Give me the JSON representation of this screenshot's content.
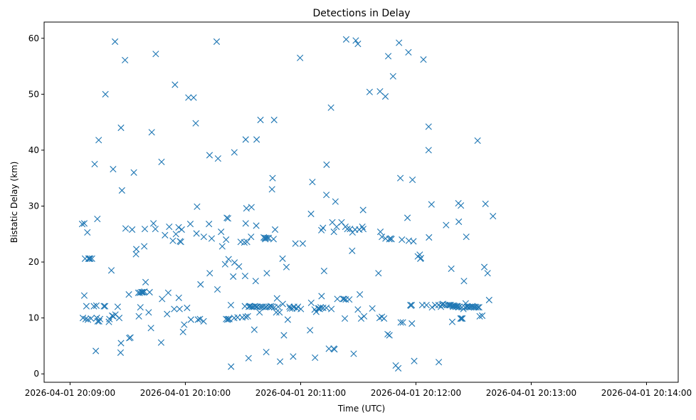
{
  "chart_data": {
    "type": "scatter",
    "title": "Detections in Delay",
    "xlabel": "Time (UTC)",
    "ylabel": "Bistatic Delay (km)",
    "marker": "x",
    "color": "#1f77b4",
    "x_unit": "seconds after 2026-04-01 20:09:00 UTC",
    "xlim": [
      -13.5,
      316.5
    ],
    "ylim": [
      -1.5,
      62.9
    ],
    "xticks": [
      {
        "value": 0,
        "label": "2026-04-01 20:09:00"
      },
      {
        "value": 60,
        "label": "2026-04-01 20:10:00"
      },
      {
        "value": 120,
        "label": "2026-04-01 20:11:00"
      },
      {
        "value": 180,
        "label": "2026-04-01 20:12:00"
      },
      {
        "value": 240,
        "label": "2026-04-01 20:13:00"
      },
      {
        "value": 300,
        "label": "2026-04-01 20:14:00"
      }
    ],
    "yticks": [
      {
        "value": 0,
        "label": "0"
      },
      {
        "value": 10,
        "label": "10"
      },
      {
        "value": 20,
        "label": "20"
      },
      {
        "value": 30,
        "label": "30"
      },
      {
        "value": 40,
        "label": "40"
      },
      {
        "value": 50,
        "label": "50"
      },
      {
        "value": 60,
        "label": "60"
      }
    ],
    "points": [
      [
        6.3,
        26.8
      ],
      [
        7.4,
        26.9
      ],
      [
        7.4,
        14.0
      ],
      [
        6.7,
        10.0
      ],
      [
        7.8,
        20.6
      ],
      [
        8.1,
        9.8
      ],
      [
        8.5,
        12.1
      ],
      [
        9.0,
        25.3
      ],
      [
        9.3,
        9.7
      ],
      [
        9.6,
        20.6
      ],
      [
        10.0,
        20.6
      ],
      [
        10.5,
        20.6
      ],
      [
        10.9,
        9.9
      ],
      [
        11.4,
        20.6
      ],
      [
        12.4,
        12.1
      ],
      [
        12.8,
        37.5
      ],
      [
        13.4,
        4.1
      ],
      [
        13.7,
        12.2
      ],
      [
        13.9,
        10.0
      ],
      [
        14.2,
        27.7
      ],
      [
        14.4,
        9.4
      ],
      [
        14.9,
        41.8
      ],
      [
        15.1,
        9.4
      ],
      [
        15.6,
        9.8
      ],
      [
        17.6,
        12.1
      ],
      [
        18.2,
        12.1
      ],
      [
        18.4,
        50.0
      ],
      [
        20.2,
        9.3
      ],
      [
        20.5,
        9.8
      ],
      [
        21.5,
        18.5
      ],
      [
        21.9,
        10.4
      ],
      [
        22.4,
        36.6
      ],
      [
        22.5,
        10.3
      ],
      [
        23.4,
        59.4
      ],
      [
        23.6,
        10.6
      ],
      [
        24.8,
        12.0
      ],
      [
        25.6,
        10.0
      ],
      [
        26.5,
        5.5
      ],
      [
        26.3,
        3.8
      ],
      [
        26.5,
        44.0
      ],
      [
        27.0,
        32.8
      ],
      [
        28.6,
        56.1
      ],
      [
        28.9,
        26.0
      ],
      [
        30.6,
        14.2
      ],
      [
        30.8,
        6.4
      ],
      [
        31.4,
        6.5
      ],
      [
        32.3,
        25.8
      ],
      [
        33.2,
        36.0
      ],
      [
        34.5,
        22.3
      ],
      [
        34.3,
        21.4
      ],
      [
        35.5,
        14.5
      ],
      [
        35.8,
        10.3
      ],
      [
        36.6,
        11.9
      ],
      [
        36.3,
        14.5
      ],
      [
        37.1,
        14.6
      ],
      [
        37.6,
        14.6
      ],
      [
        38.2,
        14.6
      ],
      [
        38.6,
        22.8
      ],
      [
        38.9,
        25.9
      ],
      [
        38.7,
        14.7
      ],
      [
        39.3,
        16.4
      ],
      [
        40.9,
        11.0
      ],
      [
        41.4,
        14.6
      ],
      [
        42.1,
        8.2
      ],
      [
        42.5,
        43.2
      ],
      [
        43.4,
        26.9
      ],
      [
        44.6,
        57.2
      ],
      [
        44.4,
        25.9
      ],
      [
        47.6,
        37.9
      ],
      [
        47.4,
        5.6
      ],
      [
        47.9,
        13.4
      ],
      [
        49.4,
        24.8
      ],
      [
        50.5,
        10.7
      ],
      [
        51.1,
        14.5
      ],
      [
        51.6,
        26.3
      ],
      [
        53.5,
        23.8
      ],
      [
        54.6,
        51.7
      ],
      [
        54.2,
        11.6
      ],
      [
        55.1,
        25.0
      ],
      [
        56.6,
        13.6
      ],
      [
        56.5,
        26.2
      ],
      [
        57.0,
        11.6
      ],
      [
        57.2,
        23.7
      ],
      [
        57.7,
        23.6
      ],
      [
        58.1,
        25.8
      ],
      [
        58.8,
        7.5
      ],
      [
        59.4,
        8.8
      ],
      [
        60.9,
        11.8
      ],
      [
        61.6,
        49.4
      ],
      [
        62.6,
        26.8
      ],
      [
        62.9,
        9.7
      ],
      [
        64.3,
        49.4
      ],
      [
        65.4,
        44.8
      ],
      [
        65.8,
        25.1
      ],
      [
        66.1,
        29.9
      ],
      [
        66.6,
        9.7
      ],
      [
        67.9,
        16.0
      ],
      [
        67.6,
        9.8
      ],
      [
        69.5,
        9.4
      ],
      [
        69.6,
        24.5
      ],
      [
        72.3,
        26.8
      ],
      [
        72.6,
        39.1
      ],
      [
        72.7,
        18.0
      ],
      [
        73.7,
        24.2
      ],
      [
        76.3,
        59.4
      ],
      [
        76.7,
        15.1
      ],
      [
        77.0,
        38.5
      ],
      [
        78.6,
        25.4
      ],
      [
        79.2,
        22.8
      ],
      [
        80.7,
        19.6
      ],
      [
        81.2,
        24.0
      ],
      [
        81.2,
        9.8
      ],
      [
        81.6,
        27.9
      ],
      [
        81.9,
        9.7
      ],
      [
        82.2,
        27.8
      ],
      [
        82.3,
        9.8
      ],
      [
        82.5,
        20.5
      ],
      [
        82.9,
        9.8
      ],
      [
        83.7,
        12.3
      ],
      [
        83.8,
        1.3
      ],
      [
        84.9,
        17.4
      ],
      [
        85.5,
        39.6
      ],
      [
        85.4,
        10.0
      ],
      [
        85.6,
        19.9
      ],
      [
        87.2,
        10.1
      ],
      [
        87.9,
        19.2
      ],
      [
        88.8,
        23.6
      ],
      [
        89.6,
        10.1
      ],
      [
        90.7,
        23.5
      ],
      [
        91.0,
        12.1
      ],
      [
        91.1,
        17.5
      ],
      [
        91.4,
        26.9
      ],
      [
        91.4,
        41.9
      ],
      [
        91.4,
        10.2
      ],
      [
        91.8,
        29.6
      ],
      [
        92.1,
        23.6
      ],
      [
        92.5,
        10.3
      ],
      [
        92.9,
        2.8
      ],
      [
        93.0,
        12.0
      ],
      [
        93.4,
        12.1
      ],
      [
        93.8,
        12.1
      ],
      [
        94.4,
        29.8
      ],
      [
        94.2,
        24.5
      ],
      [
        94.6,
        12.0
      ],
      [
        95.4,
        12.0
      ],
      [
        95.9,
        7.9
      ],
      [
        96.2,
        12.1
      ],
      [
        96.6,
        16.6
      ],
      [
        96.9,
        26.5
      ],
      [
        97.0,
        12.0
      ],
      [
        97.4,
        12.0
      ],
      [
        97.1,
        41.9
      ],
      [
        98.6,
        11.0
      ],
      [
        98.7,
        12.0
      ],
      [
        99.1,
        45.4
      ],
      [
        99.6,
        12.0
      ],
      [
        100.4,
        12.0
      ],
      [
        100.8,
        24.4
      ],
      [
        101.3,
        24.3
      ],
      [
        101.6,
        11.9
      ],
      [
        101.6,
        24.1
      ],
      [
        101.9,
        24.3
      ],
      [
        102.1,
        3.9
      ],
      [
        102.2,
        12.0
      ],
      [
        102.4,
        18.0
      ],
      [
        102.7,
        24.3
      ],
      [
        103.5,
        12.0
      ],
      [
        103.4,
        24.3
      ],
      [
        104.4,
        12.1
      ],
      [
        105.1,
        33.0
      ],
      [
        105.1,
        12.0
      ],
      [
        105.4,
        35.0
      ],
      [
        105.9,
        24.1
      ],
      [
        106.2,
        45.4
      ],
      [
        106.3,
        11.9
      ],
      [
        106.7,
        25.8
      ],
      [
        107.3,
        11.0
      ],
      [
        107.7,
        13.5
      ],
      [
        108.3,
        12.0
      ],
      [
        109.0,
        11.0
      ],
      [
        109.3,
        2.2
      ],
      [
        110.6,
        20.6
      ],
      [
        110.7,
        12.5
      ],
      [
        111.3,
        6.9
      ],
      [
        112.6,
        19.1
      ],
      [
        113.3,
        9.7
      ],
      [
        114.2,
        12.0
      ],
      [
        114.5,
        11.7
      ],
      [
        115.6,
        11.7
      ],
      [
        116.1,
        3.1
      ],
      [
        116.4,
        11.9
      ],
      [
        116.6,
        12.0
      ],
      [
        117.3,
        23.3
      ],
      [
        118.0,
        11.7
      ],
      [
        118.6,
        12.0
      ],
      [
        119.7,
        56.5
      ],
      [
        120.1,
        11.6
      ],
      [
        121.1,
        23.3
      ],
      [
        124.9,
        7.8
      ],
      [
        125.4,
        28.6
      ],
      [
        125.5,
        12.7
      ],
      [
        126.1,
        34.3
      ],
      [
        127.3,
        11.5
      ],
      [
        127.5,
        2.9
      ],
      [
        128.1,
        11.1
      ],
      [
        129.1,
        11.7
      ],
      [
        129.5,
        11.7
      ],
      [
        130.0,
        11.6
      ],
      [
        130.4,
        11.9
      ],
      [
        130.8,
        25.7
      ],
      [
        130.9,
        13.9
      ],
      [
        131.6,
        26.1
      ],
      [
        131.7,
        11.8
      ],
      [
        132.2,
        18.4
      ],
      [
        133.4,
        32.0
      ],
      [
        133.5,
        37.4
      ],
      [
        133.4,
        11.8
      ],
      [
        134.7,
        4.5
      ],
      [
        135.8,
        47.6
      ],
      [
        136.0,
        11.6
      ],
      [
        136.5,
        27.1
      ],
      [
        137.2,
        4.5
      ],
      [
        137.3,
        25.4
      ],
      [
        137.6,
        4.4
      ],
      [
        138.1,
        30.8
      ],
      [
        138.7,
        26.3
      ],
      [
        139.1,
        13.4
      ],
      [
        141.3,
        27.1
      ],
      [
        142.0,
        13.4
      ],
      [
        142.6,
        13.4
      ],
      [
        143.0,
        9.9
      ],
      [
        143.5,
        13.3
      ],
      [
        143.3,
        26.3
      ],
      [
        143.7,
        59.8
      ],
      [
        144.3,
        25.9
      ],
      [
        145.3,
        13.3
      ],
      [
        145.7,
        25.9
      ],
      [
        146.8,
        22.0
      ],
      [
        147.0,
        25.3
      ],
      [
        147.6,
        3.6
      ],
      [
        148.3,
        25.8
      ],
      [
        148.7,
        59.6
      ],
      [
        149.8,
        59.0
      ],
      [
        149.8,
        11.5
      ],
      [
        150.5,
        25.8
      ],
      [
        150.8,
        14.2
      ],
      [
        151.5,
        9.9
      ],
      [
        152.1,
        26.3
      ],
      [
        152.6,
        25.9
      ],
      [
        152.5,
        29.3
      ],
      [
        153.0,
        10.3
      ],
      [
        155.9,
        50.4
      ],
      [
        157.3,
        11.7
      ],
      [
        160.5,
        18.0
      ],
      [
        161.1,
        10.0
      ],
      [
        161.5,
        25.4
      ],
      [
        161.3,
        50.5
      ],
      [
        162.3,
        10.2
      ],
      [
        162.3,
        24.5
      ],
      [
        163.4,
        9.9
      ],
      [
        164.1,
        49.6
      ],
      [
        164.2,
        24.2
      ],
      [
        165.3,
        7.1
      ],
      [
        165.6,
        56.8
      ],
      [
        166.2,
        24.1
      ],
      [
        166.2,
        6.9
      ],
      [
        166.8,
        24.2
      ],
      [
        167.3,
        24.1
      ],
      [
        168.1,
        53.2
      ],
      [
        169.5,
        1.5
      ],
      [
        170.8,
        1.0
      ],
      [
        171.2,
        59.2
      ],
      [
        171.9,
        35.0
      ],
      [
        172.1,
        9.2
      ],
      [
        172.7,
        24.0
      ],
      [
        173.2,
        9.2
      ],
      [
        175.6,
        27.9
      ],
      [
        176.1,
        57.5
      ],
      [
        176.3,
        23.8
      ],
      [
        177.1,
        12.3
      ],
      [
        177.4,
        12.2
      ],
      [
        177.8,
        12.3
      ],
      [
        177.9,
        9.0
      ],
      [
        178.2,
        34.7
      ],
      [
        178.7,
        23.7
      ],
      [
        179.1,
        2.3
      ],
      [
        181.0,
        21.0
      ],
      [
        182.0,
        21.3
      ],
      [
        182.3,
        20.6
      ],
      [
        182.6,
        20.7
      ],
      [
        183.3,
        12.3
      ],
      [
        183.9,
        56.2
      ],
      [
        185.5,
        12.3
      ],
      [
        186.6,
        44.2
      ],
      [
        186.6,
        40.0
      ],
      [
        186.8,
        24.4
      ],
      [
        188.1,
        30.3
      ],
      [
        188.4,
        11.9
      ],
      [
        190.0,
        12.3
      ],
      [
        191.8,
        12.3
      ],
      [
        191.9,
        2.1
      ],
      [
        193.0,
        12.0
      ],
      [
        193.5,
        12.4
      ],
      [
        194.1,
        12.5
      ],
      [
        195.1,
        12.3
      ],
      [
        195.7,
        26.6
      ],
      [
        196.3,
        12.3
      ],
      [
        197.1,
        12.3
      ],
      [
        197.6,
        12.3
      ],
      [
        198.4,
        18.8
      ],
      [
        198.1,
        12.3
      ],
      [
        198.9,
        9.3
      ],
      [
        199.1,
        12.2
      ],
      [
        199.3,
        12.0
      ],
      [
        199.8,
        12.2
      ],
      [
        200.3,
        12.1
      ],
      [
        200.8,
        12.0
      ],
      [
        201.2,
        12.1
      ],
      [
        201.7,
        12.1
      ],
      [
        202.1,
        30.5
      ],
      [
        202.1,
        11.9
      ],
      [
        202.3,
        27.2
      ],
      [
        202.6,
        12.0
      ],
      [
        203.2,
        9.9
      ],
      [
        203.4,
        30.1
      ],
      [
        203.7,
        9.9
      ],
      [
        203.9,
        11.9
      ],
      [
        204.2,
        9.9
      ],
      [
        204.7,
        11.6
      ],
      [
        205.0,
        16.6
      ],
      [
        205.6,
        11.9
      ],
      [
        205.9,
        12.6
      ],
      [
        206.2,
        24.5
      ],
      [
        206.5,
        12.0
      ],
      [
        206.9,
        12.0
      ],
      [
        207.5,
        11.9
      ],
      [
        208.2,
        12.0
      ],
      [
        208.9,
        12.0
      ],
      [
        209.4,
        12.1
      ],
      [
        209.9,
        12.0
      ],
      [
        210.4,
        11.9
      ],
      [
        210.9,
        12.0
      ],
      [
        211.4,
        11.9
      ],
      [
        212.1,
        41.7
      ],
      [
        212.3,
        11.9
      ],
      [
        212.9,
        11.9
      ],
      [
        213.2,
        10.3
      ],
      [
        214.5,
        10.4
      ],
      [
        215.6,
        19.1
      ],
      [
        216.2,
        30.4
      ],
      [
        217.3,
        18.0
      ],
      [
        218.1,
        13.2
      ],
      [
        220.1,
        28.2
      ]
    ]
  }
}
